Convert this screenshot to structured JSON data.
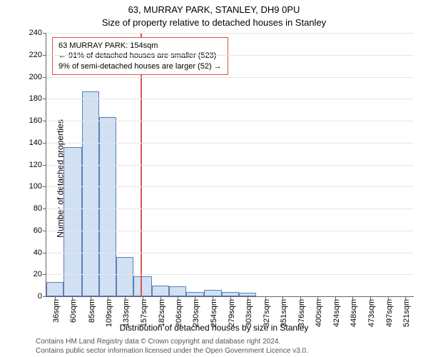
{
  "chart": {
    "type": "histogram",
    "title_main": "63, MURRAY PARK, STANLEY, DH9 0PU",
    "title_sub": "Size of property relative to detached houses in Stanley",
    "title_fontsize": 13,
    "y_label": "Number of detached properties",
    "x_label": "Distribution of detached houses by size in Stanley",
    "label_fontsize": 12,
    "tick_fontsize": 11,
    "background_color": "#ffffff",
    "grid_color": "#e5e5e5",
    "axis_color": "#646464",
    "bar_fill": "#d1e0f2",
    "bar_stroke": "#5a7fb8",
    "bar_stroke_width": 1,
    "reference_line": {
      "x_value": 154,
      "color": "#d9534f",
      "width": 2
    },
    "annotation": {
      "border_color": "#d9534f",
      "border_width": 1,
      "line1": "63 MURRAY PARK: 154sqm",
      "line2": "← 91% of detached houses are smaller (523)",
      "line3": "9% of semi-detached houses are larger (52) →",
      "fontsize": 11
    },
    "x_axis": {
      "min": 24,
      "max": 533,
      "ticks": [
        36,
        60,
        85,
        109,
        133,
        157,
        182,
        206,
        230,
        254,
        279,
        303,
        327,
        351,
        376,
        400,
        424,
        448,
        473,
        497,
        521
      ],
      "unit": "sqm"
    },
    "y_axis": {
      "min": 0,
      "max": 240,
      "ticks": [
        0,
        20,
        40,
        60,
        80,
        100,
        120,
        140,
        160,
        180,
        200,
        220,
        240
      ]
    },
    "bins": [
      {
        "start": 24,
        "end": 48,
        "count": 13
      },
      {
        "start": 48,
        "end": 73,
        "count": 136
      },
      {
        "start": 73,
        "end": 97,
        "count": 187
      },
      {
        "start": 97,
        "end": 121,
        "count": 163
      },
      {
        "start": 121,
        "end": 145,
        "count": 36
      },
      {
        "start": 145,
        "end": 170,
        "count": 18
      },
      {
        "start": 170,
        "end": 194,
        "count": 10
      },
      {
        "start": 194,
        "end": 218,
        "count": 9
      },
      {
        "start": 218,
        "end": 242,
        "count": 4
      },
      {
        "start": 242,
        "end": 267,
        "count": 6
      },
      {
        "start": 267,
        "end": 291,
        "count": 4
      },
      {
        "start": 291,
        "end": 315,
        "count": 3
      },
      {
        "start": 315,
        "end": 339,
        "count": 0
      },
      {
        "start": 339,
        "end": 364,
        "count": 0
      },
      {
        "start": 364,
        "end": 388,
        "count": 0
      },
      {
        "start": 388,
        "end": 412,
        "count": 0
      },
      {
        "start": 412,
        "end": 436,
        "count": 0
      },
      {
        "start": 436,
        "end": 461,
        "count": 0
      },
      {
        "start": 461,
        "end": 485,
        "count": 0
      },
      {
        "start": 485,
        "end": 509,
        "count": 0
      },
      {
        "start": 509,
        "end": 533,
        "count": 0
      }
    ],
    "attribution_line1": "Contains HM Land Registry data © Crown copyright and database right 2024.",
    "attribution_line2": "Contains public sector information licensed under the Open Government Licence v3.0."
  }
}
